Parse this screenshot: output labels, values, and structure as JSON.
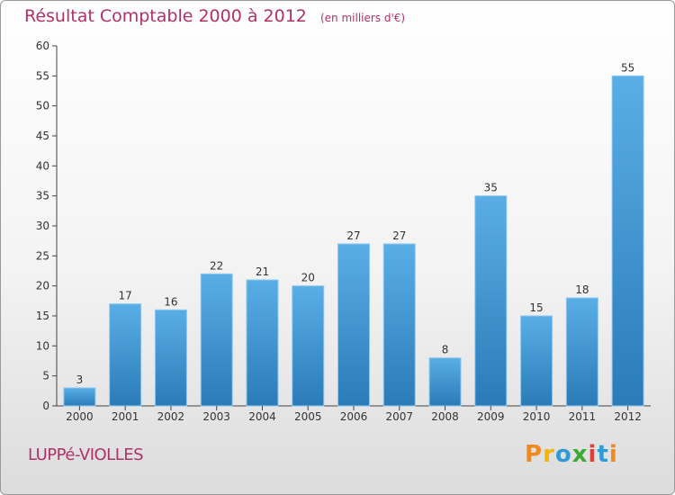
{
  "chart_data": {
    "type": "bar",
    "title": "Résultat Comptable 2000 à 2012",
    "subtitle": "(en milliers d'€)",
    "categories": [
      "2000",
      "2001",
      "2002",
      "2003",
      "2004",
      "2005",
      "2006",
      "2007",
      "2008",
      "2009",
      "2010",
      "2011",
      "2012"
    ],
    "values": [
      3,
      17,
      16,
      22,
      21,
      20,
      27,
      27,
      8,
      35,
      15,
      18,
      55
    ],
    "ylim": [
      0,
      60
    ],
    "ystep": 5,
    "xlabel": "",
    "ylabel": "",
    "grid": false,
    "bar_color_top": "#5aaee6",
    "bar_color_bottom": "#2a7bb8"
  },
  "footer": {
    "commune": "LUPPé-VIOLLES",
    "logo_letters": [
      "P",
      "r",
      "o",
      "x",
      "i",
      "t",
      "i"
    ],
    "logo_colors": [
      "#f08a1c",
      "#f4b400",
      "#2e9bd6",
      "#3aa935",
      "#e0403a",
      "#2e9bd6",
      "#f08a1c"
    ]
  }
}
